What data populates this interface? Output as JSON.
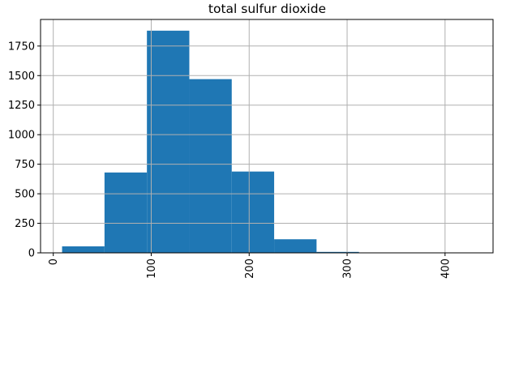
{
  "chart_data": {
    "type": "bar",
    "subtype": "histogram",
    "title": "total sulfur dioxide",
    "xlabel": "",
    "ylabel": "",
    "bins": [
      {
        "x0": 9,
        "x1": 52.3,
        "count": 55
      },
      {
        "x0": 52.3,
        "x1": 95.6,
        "count": 680
      },
      {
        "x0": 95.6,
        "x1": 138.9,
        "count": 1880
      },
      {
        "x0": 138.9,
        "x1": 182.2,
        "count": 1470
      },
      {
        "x0": 182.2,
        "x1": 225.5,
        "count": 688
      },
      {
        "x0": 225.5,
        "x1": 268.8,
        "count": 115
      },
      {
        "x0": 268.8,
        "x1": 312.1,
        "count": 8
      },
      {
        "x0": 312.1,
        "x1": 355.4,
        "count": 0
      },
      {
        "x0": 355.4,
        "x1": 398.7,
        "count": 0
      },
      {
        "x0": 398.7,
        "x1": 440,
        "count": 1
      }
    ],
    "xlim": [
      -13,
      449
    ],
    "ylim": [
      0,
      1975
    ],
    "x_ticks": [
      0,
      100,
      200,
      300,
      400
    ],
    "x_tick_labels": [
      "0",
      "100",
      "200",
      "300",
      "400"
    ],
    "y_ticks": [
      0,
      250,
      500,
      750,
      1000,
      1250,
      1500,
      1750
    ],
    "y_tick_labels": [
      "0",
      "250",
      "500",
      "750",
      "1000",
      "1250",
      "1500",
      "1750"
    ],
    "x_tick_rotation": "vertical",
    "grid": true,
    "legend": "none"
  },
  "colors": {
    "bar": "#1f77b4",
    "grid": "#b0b0b0",
    "axes": "#000000",
    "background": "#ffffff"
  }
}
